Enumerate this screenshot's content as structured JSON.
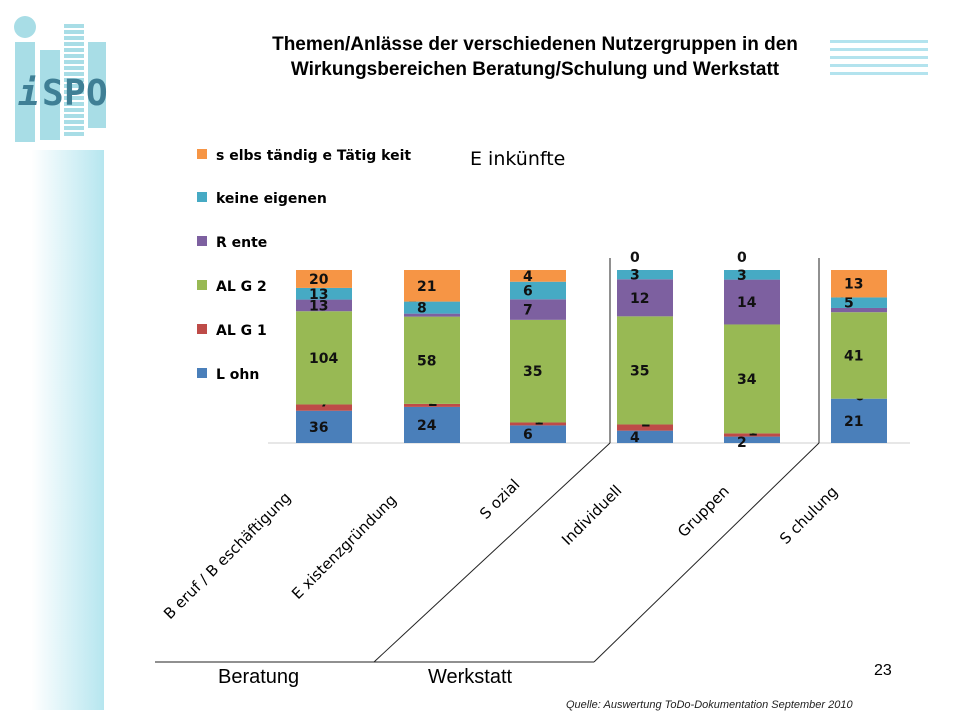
{
  "slide": {
    "title_line1": "Themen/Anlässe der verschiedenen Nutzergruppen in den",
    "title_line2": "Wirkungsbereichen Beratung/Schulung und Werkstatt",
    "logo_text": "iSPO",
    "page_number": "23",
    "source": "Quelle: Auswertung ToDo-Dokumentation  September 2010",
    "groups": [
      "Beratung",
      "Werkstatt"
    ]
  },
  "chart_data": {
    "type": "bar",
    "stacked": true,
    "title": "E inkünfte",
    "categories": [
      "B eruf / B eschäftigung",
      "E xistenzgründung",
      "S ozial",
      "Individuell",
      "Gruppen",
      "S chulung"
    ],
    "series": [
      {
        "name": "L ohn",
        "color": "#4a7fba",
        "values": [
          36,
          24,
          6,
          4,
          2,
          21
        ]
      },
      {
        "name": "AL G 1",
        "color": "#be4b48",
        "values": [
          7,
          2,
          1,
          2,
          1,
          0
        ]
      },
      {
        "name": "AL G 2",
        "color": "#98b954",
        "values": [
          104,
          58,
          35,
          35,
          34,
          41
        ]
      },
      {
        "name": "R ente",
        "color": "#7d60a0",
        "values": [
          13,
          2,
          7,
          12,
          14,
          2
        ]
      },
      {
        "name": "keine eigenen",
        "color": "#46aac4",
        "values": [
          13,
          8,
          6,
          3,
          3,
          5
        ]
      },
      {
        "name": "s elbs tändig e Tätig keit",
        "color": "#f69545",
        "values": [
          20,
          21,
          4,
          0,
          0,
          13
        ]
      }
    ],
    "value_scale": "each bar normalized to 100%",
    "legend_position": "left",
    "grid": false
  }
}
